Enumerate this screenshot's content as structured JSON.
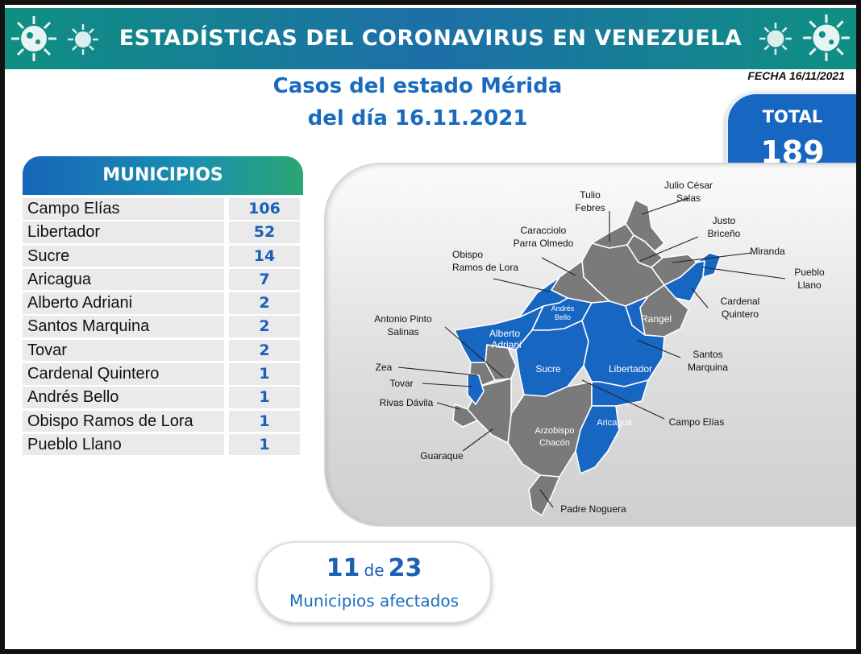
{
  "banner": {
    "title": "ESTADÍSTICAS DEL CORONAVIRUS EN VENEZUELA"
  },
  "fecha": "FECHA 16/11/2021",
  "title": {
    "line1": "Casos del estado Mérida",
    "line2": "del día 16.11.2021"
  },
  "total": {
    "label": "TOTAL",
    "value": "189"
  },
  "municipios": {
    "header": "MUNICIPIOS",
    "rows": [
      {
        "name": "Campo Elías",
        "value": "106"
      },
      {
        "name": "Libertador",
        "value": "52"
      },
      {
        "name": "Sucre",
        "value": "14"
      },
      {
        "name": "Aricagua",
        "value": "7"
      },
      {
        "name": "Alberto Adriani",
        "value": "2"
      },
      {
        "name": "Santos Marquina",
        "value": "2"
      },
      {
        "name": "Tovar",
        "value": "2"
      },
      {
        "name": "Cardenal Quintero",
        "value": "1"
      },
      {
        "name": "Andrés Bello",
        "value": "1"
      },
      {
        "name": "Obispo Ramos de Lora",
        "value": "1"
      },
      {
        "name": "Pueblo Llano",
        "value": "1"
      }
    ]
  },
  "map": {
    "colors": {
      "affected": "#1766c2",
      "unaffected": "#7a7a7a",
      "border": "#ffffff"
    },
    "inner_labels": {
      "alberto_adriani": "Alberto Adriani",
      "andres_bello": "Andrés Bello",
      "sucre": "Sucre",
      "libertador": "Libertador",
      "rangel": "Rangel",
      "aricagua": "Aricagua",
      "arzobispo_chacon": "Arzobispo Chacón"
    },
    "callouts": {
      "tulio_febres": "Tulio Febres",
      "julio_cesar_salas": "Julio César Salas",
      "justo_briceno": "Justo Briceño",
      "miranda": "Miranda",
      "pueblo_llano": "Pueblo Llano",
      "caracciolo_parra_olmedo": "Caracciolo Parra Olmedo",
      "obispo_ramos_de_lora": "Obispo Ramos de Lora",
      "cardenal_quintero": "Cardenal Quintero",
      "antonio_pinto_salinas": "Antonio Pinto Salinas",
      "santos_marquina": "Santos Marquina",
      "zea": "Zea",
      "tovar": "Tovar",
      "rivas_davila": "Rivas Dávila",
      "campo_elias": "Campo Elías",
      "guaraque": "Guaraque",
      "padre_noguera": "Padre Noguera"
    }
  },
  "affected": {
    "count": "11",
    "de": "de",
    "total": "23",
    "label": "Municipios afectados"
  }
}
